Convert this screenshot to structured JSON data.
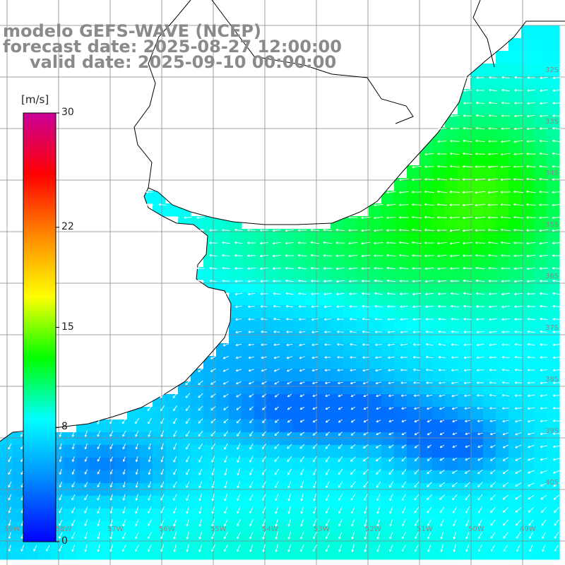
{
  "title": {
    "line1": "modelo GEFS-WAVE (NCEP)",
    "line2": "forecast date: 2025-08-27 12:00:00",
    "line3": "valid date: 2025-09-10 00:00:00"
  },
  "colorbar": {
    "unit": "[m/s]",
    "ticks": [
      {
        "label": "30",
        "value": 30
      },
      {
        "label": "22",
        "value": 22
      },
      {
        "label": "15",
        "value": 15
      },
      {
        "label": "8",
        "value": 8
      },
      {
        "label": "0",
        "value": 0
      }
    ],
    "range": [
      0,
      30
    ],
    "stops": [
      "#0000ff",
      "#0088ff",
      "#00ffff",
      "#00ff00",
      "#ffff00",
      "#ff8800",
      "#ff0000",
      "#cc0099"
    ]
  },
  "map": {
    "lat_labels": [
      "32S",
      "33S",
      "34S",
      "35S",
      "36S",
      "37S",
      "38S",
      "39S",
      "40S"
    ],
    "lon_labels": [
      "59W",
      "58W",
      "57W",
      "56W",
      "55W",
      "54W",
      "53W",
      "52W",
      "51W",
      "50W",
      "49W"
    ],
    "colors": {
      "land": "#ffffff",
      "grid": "#888888",
      "coast": "#000000",
      "arrow": "#ffffff"
    }
  }
}
